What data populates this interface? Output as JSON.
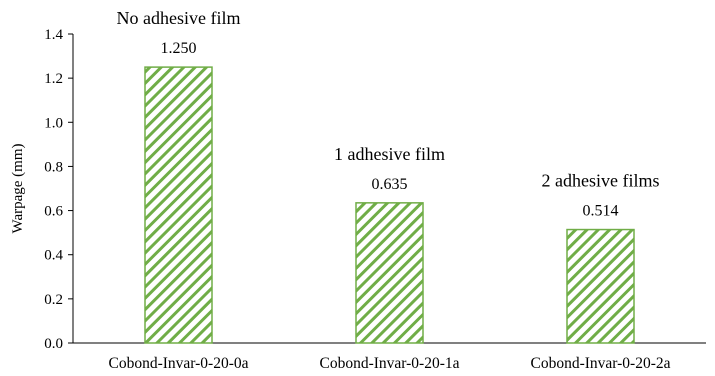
{
  "chart_data": {
    "type": "bar",
    "categories": [
      "Cobond-Invar-0-20-0a",
      "Cobond-Invar-0-20-1a",
      "Cobond-Invar-0-20-2a"
    ],
    "values": [
      1.25,
      0.635,
      0.514
    ],
    "data_labels": [
      "1.250",
      "0.635",
      "0.514"
    ],
    "annotations": [
      "No adhesive film",
      "1 adhesive film",
      "2 adhesive films"
    ],
    "ylabel": "Warpage (mm)",
    "ylim": [
      0,
      1.4
    ],
    "yticks": [
      0.0,
      0.2,
      0.4,
      0.6,
      0.8,
      1.0,
      1.2,
      1.4
    ],
    "ytick_labels": [
      "0.0",
      "0.2",
      "0.4",
      "0.6",
      "0.8",
      "1.0",
      "1.2",
      "1.4"
    ],
    "grid": false,
    "bar_color": "#70ad47",
    "bar_fill": "diagonal-hatch"
  }
}
